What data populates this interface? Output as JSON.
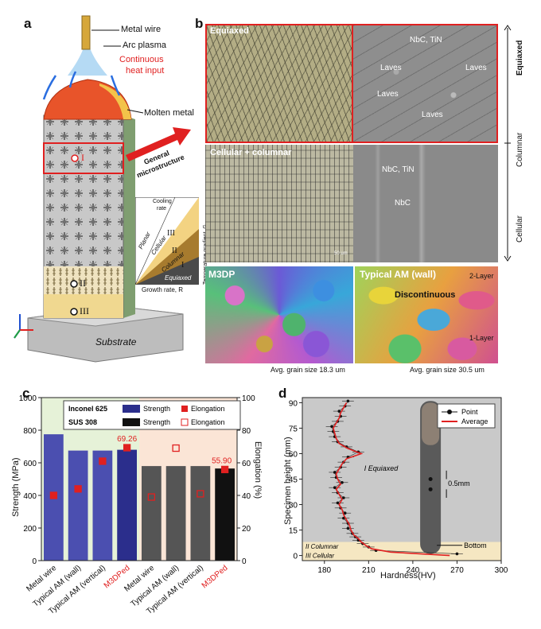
{
  "panel_letters": [
    "a",
    "b",
    "c",
    "d"
  ],
  "panel_a": {
    "labels": {
      "metal_wire": "Metal wire",
      "arc_plasma": "Arc plasma",
      "heat_input_1": "Continuous",
      "heat_input_2": "heat input",
      "molten_metal": "Molten metal",
      "substrate": "Substrate",
      "general_1": "General",
      "general_2": "microstructure",
      "zone_I": "I",
      "zone_II": "II",
      "zone_III": "III"
    },
    "inset": {
      "cooling_1": "Cooling",
      "cooling_2": "rate",
      "planar": "Planar",
      "cellular": "Cellular",
      "columnar": "Columnar",
      "equiaxed": "Equiaxed",
      "zone_III": "III",
      "zone_II": "II",
      "zone_I": "I",
      "y_axis": "Temperature gradient, G",
      "x_axis": "Growth rate, R"
    },
    "colors": {
      "orange": "#e8542a",
      "yellow": "#f3d382",
      "gray": "#b9b9b9"
    }
  },
  "panel_b": {
    "optical_top_label": "Equiaxed",
    "optical_mid_label": "Cellular + columnar",
    "sem_top": {
      "nbc_tin": "NbC, TiN",
      "laves_1": "Laves",
      "laves_2": "Laves",
      "laves_3": "Laves",
      "laves_4": "Laves"
    },
    "sem_mid": {
      "nbc_tin": "NbC, TiN",
      "nbc": "NbC"
    },
    "side": {
      "equiaxed": "Equiaxed",
      "columnar": "Columnar",
      "cellular": "Cellular"
    },
    "ebsd_left": {
      "title": "M3DP",
      "caption": "Avg. grain size 18.3 um"
    },
    "ebsd_right": {
      "title": "Typical AM (wall)",
      "caption": "Avg. grain size 30.5 um",
      "discontinuous": "Discontinuous",
      "layer2": "2-Layer",
      "layer1": "1-Layer"
    },
    "scale_50um": "50 um"
  },
  "panel_c": {
    "chart_data": {
      "type": "bar",
      "categories": [
        "Metal wire",
        "Typical AM (wall)",
        "Typical AM (vertical)",
        "M3DPed",
        "Metal wire",
        "Typical AM (wall)",
        "Typical AM (vertical)",
        "M3DPed"
      ],
      "groups": [
        "Inconel 625",
        "SUS 308"
      ],
      "series": [
        {
          "name": "Strength",
          "axis": "left",
          "values": [
            775,
            675,
            675,
            680,
            580,
            580,
            580,
            565
          ]
        },
        {
          "name": "Elongation",
          "axis": "right",
          "values": [
            40,
            44,
            61,
            69.26,
            39,
            69,
            41,
            55.9
          ]
        }
      ],
      "ylabel": "Strength (MPa)",
      "y2label": "Elongation (%)",
      "ylim": [
        0,
        1000
      ],
      "y2lim": [
        0,
        100
      ],
      "yticks": [
        "0",
        "200",
        "400",
        "600",
        "800",
        "1000"
      ],
      "y2ticks": [
        "0",
        "20",
        "40",
        "60",
        "80",
        "100"
      ],
      "annotations": [
        "69.26",
        "55.90"
      ],
      "legend": {
        "inconel": "Inconel 625",
        "sus": "SUS 308",
        "strength": "Strength",
        "elongation": "Elongation"
      },
      "colors": {
        "inconel": "#2b2e8c",
        "inconel_light": "#4b4fb0",
        "sus": "#111111",
        "sus_light": "#555555",
        "marker": "#e02020",
        "bg_left": "#e6f2d8",
        "bg_right": "#fbe5d6"
      }
    }
  },
  "panel_d": {
    "chart_data": {
      "type": "line",
      "xlabel": "Hardness(HV)",
      "ylabel": "Specimen height (mm)",
      "xlim": [
        165,
        300
      ],
      "ylim": [
        -3,
        93
      ],
      "xticks": [
        "180",
        "210",
        "240",
        "270",
        "300"
      ],
      "yticks": [
        "0",
        "15",
        "30",
        "45",
        "60",
        "75",
        "90"
      ],
      "series": [
        {
          "name": "Average",
          "y": [
            0,
            2,
            4,
            6,
            8,
            10,
            12,
            15,
            18,
            21,
            24,
            27,
            30,
            33,
            36,
            39,
            42,
            45,
            48,
            51,
            54,
            57,
            60,
            63,
            66,
            69,
            72,
            75,
            78,
            81,
            84,
            87,
            90
          ],
          "x": [
            265,
            225,
            212,
            208,
            205,
            203,
            200,
            198,
            197,
            195,
            193,
            192,
            190,
            192,
            190,
            188,
            191,
            189,
            188,
            190,
            192,
            195,
            205,
            196,
            190,
            188,
            187,
            186,
            188,
            190,
            191,
            193,
            195
          ]
        },
        {
          "name": "Point",
          "y": [
            1,
            3,
            5,
            7,
            9,
            11,
            13,
            16,
            19,
            22,
            25,
            28,
            31,
            34,
            37,
            40,
            43,
            46,
            49,
            52,
            55,
            58,
            61,
            64,
            67,
            70,
            73,
            76,
            79,
            82,
            85,
            88,
            91
          ],
          "x": [
            270,
            215,
            210,
            206,
            203,
            201,
            199,
            196,
            196,
            193,
            194,
            191,
            189,
            193,
            189,
            187,
            192,
            188,
            187,
            191,
            193,
            196,
            203,
            195,
            189,
            187,
            186,
            185,
            189,
            191,
            190,
            194,
            196
          ]
        }
      ],
      "zones": {
        "equiaxed": "Equiaxed",
        "columnar": "Columnar",
        "cellular": "Cellular",
        "eq_num": "I",
        "col_num": "II",
        "cell_num": "III"
      },
      "annot": {
        "spacing": "0.5mm",
        "bottom": "Bottom"
      },
      "legend": {
        "point": "Point",
        "average": "Average"
      },
      "colors": {
        "avg": "#e02020",
        "point": "#111111",
        "bg": "#c9c9c9",
        "band": "#f5e7c2"
      }
    }
  }
}
